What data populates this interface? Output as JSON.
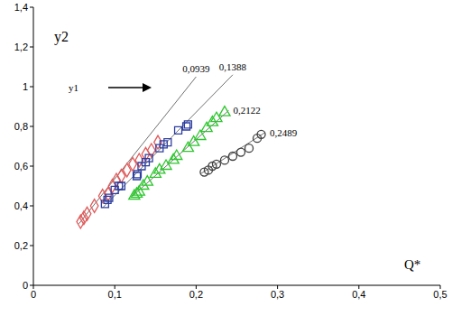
{
  "chart_data": {
    "type": "scatter",
    "xlabel": "Q*",
    "ylabel": "y2",
    "annotations": [
      {
        "text": "y1"
      }
    ],
    "xlim": [
      0,
      0.5
    ],
    "xticks": [
      {
        "value": 0,
        "label": "0"
      },
      {
        "value": 0.1,
        "label": "0,1"
      },
      {
        "value": 0.2,
        "label": "0,2"
      },
      {
        "value": 0.3,
        "label": "0,3"
      },
      {
        "value": 0.4,
        "label": "0,4"
      },
      {
        "value": 0.5,
        "label": "0,5"
      }
    ],
    "ylim": [
      0,
      1.4
    ],
    "yticks": [
      {
        "value": 0,
        "label": "0"
      },
      {
        "value": 0.2,
        "label": "0,2"
      },
      {
        "value": 0.4,
        "label": "0,4"
      },
      {
        "value": 0.6,
        "label": "0,6"
      },
      {
        "value": 0.8,
        "label": "0,8"
      },
      {
        "value": 1,
        "label": "1"
      },
      {
        "value": 1.2,
        "label": "1,2"
      },
      {
        "value": 1.4,
        "label": "1,4"
      }
    ],
    "grid": false,
    "series": [
      {
        "name": "0,0939",
        "color": "#e05a5a",
        "marker": "diamond",
        "x": [
          0.058,
          0.062,
          0.066,
          0.075,
          0.085,
          0.092,
          0.097,
          0.102,
          0.108,
          0.115,
          0.122,
          0.13,
          0.138,
          0.145,
          0.153
        ],
        "values": [
          0.32,
          0.34,
          0.36,
          0.4,
          0.45,
          0.46,
          0.5,
          0.53,
          0.55,
          0.58,
          0.61,
          0.63,
          0.66,
          0.68,
          0.72
        ],
        "fit": {
          "x": [
            0.056,
            0.2
          ],
          "values": [
            0.31,
            1.05
          ]
        }
      },
      {
        "name": "0,1388",
        "color": "#2e3fa0",
        "marker": "square",
        "x": [
          0.088,
          0.091,
          0.093,
          0.1,
          0.105,
          0.108,
          0.127,
          0.128,
          0.133,
          0.138,
          0.142,
          0.155,
          0.16,
          0.165,
          0.178,
          0.188,
          0.19
        ],
        "values": [
          0.41,
          0.43,
          0.44,
          0.48,
          0.5,
          0.5,
          0.55,
          0.56,
          0.6,
          0.62,
          0.64,
          0.69,
          0.71,
          0.72,
          0.78,
          0.8,
          0.81
        ],
        "fit": {
          "x": [
            0.085,
            0.245
          ],
          "values": [
            0.39,
            1.06
          ]
        }
      },
      {
        "name": "0,2122",
        "color": "#2ec62e",
        "marker": "triangle",
        "x": [
          0.124,
          0.127,
          0.13,
          0.135,
          0.14,
          0.15,
          0.155,
          0.163,
          0.172,
          0.176,
          0.19,
          0.197,
          0.205,
          0.213,
          0.22,
          0.225,
          0.235
        ],
        "values": [
          0.45,
          0.46,
          0.47,
          0.5,
          0.52,
          0.56,
          0.58,
          0.6,
          0.63,
          0.65,
          0.69,
          0.72,
          0.75,
          0.79,
          0.82,
          0.84,
          0.87
        ],
        "fit": {
          "x": [
            0.122,
            0.24
          ],
          "values": [
            0.45,
            0.88
          ]
        }
      },
      {
        "name": "0,2489",
        "color": "#404040",
        "marker": "circle",
        "x": [
          0.21,
          0.215,
          0.22,
          0.225,
          0.235,
          0.245,
          0.255,
          0.265,
          0.275,
          0.28
        ],
        "values": [
          0.57,
          0.58,
          0.6,
          0.61,
          0.63,
          0.65,
          0.67,
          0.69,
          0.74,
          0.76
        ],
        "fit": {
          "x": [
            0.205,
            0.285
          ],
          "values": [
            0.56,
            0.77
          ]
        }
      }
    ]
  }
}
